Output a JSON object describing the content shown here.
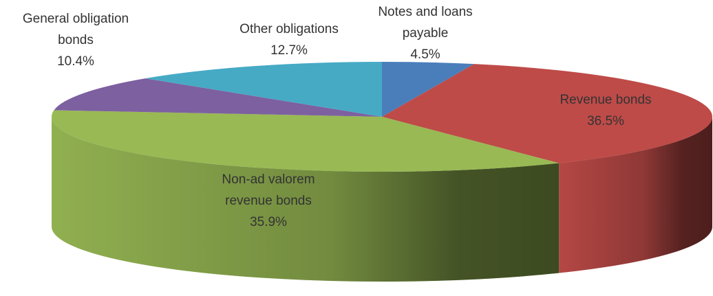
{
  "chart_data": {
    "type": "pie",
    "categories": [
      "Notes and loans payable",
      "Revenue bonds",
      "Non-ad valorem revenue bonds",
      "General obligation bonds",
      "Other obligations"
    ],
    "values": [
      4.5,
      36.5,
      35.9,
      10.4,
      12.7
    ],
    "value_labels": [
      "4.5%",
      "36.5%",
      "35.9%",
      "10.4%",
      "12.7%"
    ],
    "colors": [
      "#4a7ebb",
      "#be4b48",
      "#98b954",
      "#7d60a0",
      "#46aac5"
    ]
  }
}
